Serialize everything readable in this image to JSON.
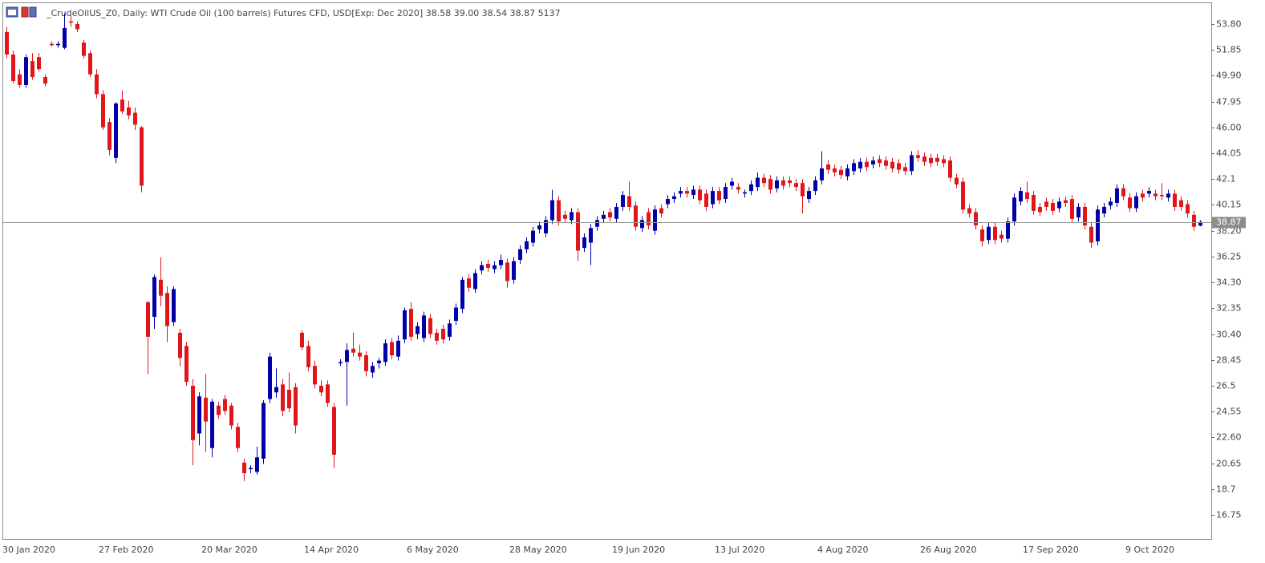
{
  "chart_data": {
    "type": "candlestick",
    "title": "_CrudeOilUS_Z0, Daily:  WTI Crude Oil (100 barrels) Futures CFD, USD[Exp: Dec 2020]  38.58 39.00 38.54 38.87  5137",
    "up_color": "#0000a8",
    "down_color": "#e0161a",
    "ylim": [
      14.94,
      55.43
    ],
    "yticks": [
      {
        "value": 53.8,
        "label": "53.80"
      },
      51.85,
      {
        "value": 49.9,
        "label": "49.90"
      },
      47.95,
      {
        "value": 46,
        "label": "46.00"
      },
      44.05,
      42.1,
      40.15,
      {
        "value": 38.2,
        "label": "38.20"
      },
      36.25,
      {
        "value": 34.3,
        "label": "34.30"
      },
      32.35,
      {
        "value": 30.4,
        "label": "30.40"
      },
      28.45,
      26.5,
      24.55,
      {
        "value": 22.6,
        "label": "22.60"
      },
      20.65,
      18.7,
      16.75
    ],
    "last_price": 38.87,
    "categories": [
      "30 Jan 2020",
      null,
      null,
      null,
      null,
      null,
      null,
      null,
      null,
      null,
      null,
      null,
      null,
      null,
      null,
      "27 Feb 2020",
      null,
      null,
      null,
      null,
      null,
      null,
      null,
      null,
      null,
      null,
      null,
      null,
      null,
      null,
      null,
      "20 Mar 2020",
      null,
      null,
      null,
      null,
      null,
      null,
      null,
      null,
      null,
      null,
      null,
      null,
      null,
      null,
      null,
      "14 Apr 2020",
      null,
      null,
      null,
      null,
      null,
      null,
      null,
      null,
      null,
      null,
      null,
      null,
      null,
      null,
      null,
      "6 May 2020",
      null,
      null,
      null,
      null,
      null,
      null,
      null,
      null,
      null,
      null,
      null,
      null,
      null,
      null,
      null,
      "28 May 2020",
      null,
      null,
      null,
      null,
      null,
      null,
      null,
      null,
      null,
      null,
      null,
      null,
      null,
      null,
      null,
      "19 Jun 2020",
      null,
      null,
      null,
      null,
      null,
      null,
      null,
      null,
      null,
      null,
      null,
      null,
      null,
      null,
      null,
      "13 Jul 2020",
      null,
      null,
      null,
      null,
      null,
      null,
      null,
      null,
      null,
      null,
      null,
      null,
      null,
      null,
      null,
      "4 Aug 2020",
      null,
      null,
      null,
      null,
      null,
      null,
      null,
      null,
      null,
      null,
      null,
      null,
      null,
      null,
      null,
      "26 Aug 2020",
      null,
      null,
      null,
      null,
      null,
      null,
      null,
      null,
      null,
      null,
      null,
      null,
      null,
      null,
      null,
      "17 Sep 2020",
      null,
      null,
      null,
      null,
      null,
      null,
      null,
      null,
      null,
      null,
      null,
      null,
      null,
      null,
      null,
      "9 Oct 2020",
      null,
      null,
      null,
      null,
      null,
      null,
      null,
      null,
      null,
      null,
      null
    ],
    "open": [
      53.2,
      51.5,
      50.0,
      49.2,
      51.0,
      51.3,
      49.8,
      52.3,
      52.2,
      52.0,
      54.0,
      53.8,
      52.4,
      51.6,
      50.0,
      48.5,
      46.4,
      43.7,
      48.1,
      47.5,
      47.1,
      46.0,
      32.8,
      31.7,
      34.5,
      33.5,
      31.3,
      30.5,
      29.5,
      26.5,
      22.9,
      25.6,
      21.8,
      25.0,
      25.5,
      25.0,
      23.4,
      20.7,
      20.2,
      20.0,
      21.0,
      25.5,
      26.0,
      26.6,
      26.2,
      26.4,
      30.5,
      29.5,
      28.0,
      26.5,
      26.6,
      24.9,
      28.2,
      28.3,
      29.3,
      29.0,
      28.8,
      27.5,
      28.2,
      28.3,
      29.8,
      28.7,
      30.0,
      32.3,
      30.4,
      30.1,
      31.6,
      30.5,
      30.8,
      30.2,
      31.4,
      32.3,
      34.6,
      33.8,
      35.2,
      35.7,
      35.3,
      35.6,
      35.8,
      34.5,
      36.0,
      36.8,
      37.3,
      38.3,
      38.0,
      39.0,
      40.5,
      39.4,
      39.0,
      39.6,
      36.9,
      37.3,
      38.5,
      39.1,
      39.6,
      39.1,
      40.0,
      40.8,
      40.1,
      38.4,
      39.6,
      38.2,
      39.9,
      40.2,
      40.6,
      41.0,
      41.2,
      40.9,
      41.3,
      41.0,
      40.2,
      41.2,
      40.6,
      41.6,
      41.5,
      41.0,
      41.2,
      41.5,
      42.2,
      42.1,
      41.4,
      42.0,
      42.0,
      41.8,
      41.8,
      40.6,
      41.2,
      42.0,
      43.2,
      42.9,
      42.8,
      42.3,
      42.7,
      42.9,
      43.4,
      43.2,
      43.6,
      43.5,
      43.4,
      43.3,
      43.0,
      42.7,
      43.9,
      43.8,
      43.7,
      43.7,
      43.6,
      43.5,
      42.2,
      41.9,
      39.9,
      39.6,
      38.3,
      37.5,
      38.5,
      37.9,
      37.6,
      38.9,
      40.4,
      41.1,
      40.9,
      40.0,
      40.4,
      40.3,
      39.9,
      40.5,
      40.6,
      39.2,
      40.0,
      38.5,
      37.4,
      39.5,
      40.1,
      40.3,
      41.4,
      40.7,
      39.9,
      41.0,
      41.0,
      41.0,
      40.9,
      40.7,
      41.0,
      40.5,
      40.2,
      39.4,
      38.58
    ],
    "high": [
      53.6,
      51.8,
      50.4,
      51.5,
      51.6,
      51.6,
      50.0,
      52.5,
      52.5,
      54.6,
      54.4,
      54.0,
      52.6,
      51.8,
      50.4,
      48.8,
      46.7,
      47.9,
      48.8,
      48.0,
      47.5,
      46.1,
      32.9,
      34.9,
      36.2,
      34.0,
      34.0,
      30.8,
      29.8,
      27.0,
      26.0,
      27.4,
      25.5,
      25.3,
      25.8,
      25.2,
      23.7,
      21.0,
      20.5,
      21.9,
      25.4,
      29.0,
      27.8,
      27.0,
      27.5,
      26.7,
      30.7,
      29.9,
      28.4,
      26.9,
      26.9,
      25.2,
      28.5,
      29.7,
      30.5,
      29.6,
      29.1,
      28.3,
      28.6,
      30.0,
      30.1,
      30.3,
      32.4,
      32.8,
      31.3,
      32.1,
      31.9,
      30.8,
      31.1,
      31.5,
      32.7,
      34.7,
      34.9,
      35.3,
      35.9,
      36.0,
      35.9,
      36.4,
      36.1,
      36.2,
      37.1,
      37.7,
      38.5,
      38.9,
      39.3,
      41.3,
      40.8,
      39.7,
      39.9,
      39.9,
      38.0,
      38.7,
      39.3,
      39.7,
      39.9,
      40.3,
      41.2,
      41.9,
      40.4,
      39.3,
      39.9,
      40.1,
      40.2,
      40.9,
      41.1,
      41.5,
      41.5,
      41.6,
      41.6,
      41.3,
      41.5,
      41.5,
      41.8,
      42.2,
      41.8,
      41.3,
      42.0,
      42.6,
      42.5,
      42.4,
      42.3,
      42.3,
      42.3,
      42.1,
      42.1,
      41.5,
      42.3,
      44.2,
      43.5,
      43.2,
      43.1,
      43.2,
      43.6,
      43.7,
      43.7,
      43.8,
      43.9,
      43.8,
      43.7,
      43.6,
      43.3,
      44.2,
      44.3,
      44.1,
      44.0,
      44.0,
      43.9,
      43.8,
      42.5,
      42.2,
      40.2,
      39.9,
      38.6,
      38.8,
      38.8,
      38.2,
      39.2,
      41.0,
      41.5,
      41.9,
      41.2,
      40.3,
      40.7,
      40.6,
      40.7,
      40.8,
      40.9,
      40.3,
      40.3,
      38.8,
      40.1,
      40.3,
      40.7,
      41.7,
      41.7,
      41.0,
      41.1,
      41.3,
      41.5,
      41.3,
      41.8,
      41.3,
      41.3,
      40.8,
      40.5,
      39.7,
      39.0
    ],
    "low": [
      51.2,
      49.3,
      49.0,
      49.0,
      49.6,
      50.2,
      49.1,
      52.1,
      52.0,
      51.9,
      53.6,
      53.2,
      51.2,
      49.8,
      48.2,
      45.8,
      43.9,
      43.3,
      47.0,
      46.6,
      45.8,
      41.1,
      27.4,
      30.8,
      32.5,
      29.8,
      31.0,
      28.0,
      26.5,
      20.5,
      22.0,
      21.5,
      21.1,
      24.0,
      24.3,
      23.2,
      21.5,
      19.3,
      19.9,
      19.8,
      20.6,
      25.2,
      25.6,
      24.2,
      24.5,
      22.9,
      29.2,
      27.6,
      26.3,
      25.7,
      24.9,
      20.3,
      28.0,
      25.0,
      28.7,
      28.4,
      27.2,
      27.1,
      27.8,
      28.0,
      28.5,
      28.4,
      29.7,
      29.9,
      30.0,
      29.8,
      30.1,
      29.6,
      29.7,
      29.9,
      31.1,
      32.0,
      33.6,
      33.5,
      34.9,
      35.1,
      35.0,
      35.3,
      33.9,
      34.2,
      35.7,
      36.5,
      37.0,
      38.0,
      37.7,
      38.7,
      38.6,
      38.8,
      38.7,
      35.9,
      36.6,
      35.6,
      38.2,
      38.8,
      38.9,
      38.8,
      39.7,
      39.7,
      38.2,
      38.1,
      38.3,
      37.9,
      39.2,
      39.9,
      40.3,
      40.7,
      40.7,
      40.6,
      40.2,
      39.7,
      39.9,
      40.2,
      40.3,
      41.3,
      41.0,
      40.7,
      40.9,
      41.2,
      41.5,
      41.0,
      41.1,
      41.3,
      41.5,
      41.2,
      39.5,
      40.3,
      40.9,
      41.7,
      42.5,
      42.3,
      42.1,
      42.0,
      42.4,
      42.6,
      42.7,
      42.9,
      43.0,
      42.8,
      42.6,
      42.5,
      42.4,
      42.4,
      43.4,
      43.1,
      43.0,
      43.1,
      43.0,
      41.9,
      41.4,
      39.5,
      39.2,
      38.3,
      37.0,
      37.2,
      37.2,
      37.3,
      37.3,
      38.6,
      40.1,
      40.3,
      39.4,
      39.3,
      39.7,
      39.4,
      39.6,
      40.0,
      38.8,
      38.9,
      38.3,
      36.9,
      37.1,
      39.2,
      39.8,
      40.0,
      40.5,
      39.6,
      39.6,
      40.4,
      40.7,
      40.5,
      40.5,
      40.4,
      39.7,
      39.7,
      39.2,
      38.2,
      38.54
    ],
    "close": [
      51.5,
      49.5,
      49.2,
      51.3,
      49.8,
      50.4,
      49.3,
      52.2,
      52.3,
      53.5,
      53.9,
      53.4,
      51.4,
      50.0,
      48.5,
      46.0,
      44.3,
      47.8,
      47.2,
      46.9,
      46.2,
      41.6,
      30.2,
      34.7,
      33.3,
      31.0,
      33.8,
      28.6,
      26.8,
      22.4,
      25.7,
      23.8,
      25.3,
      24.3,
      24.6,
      23.5,
      21.8,
      19.9,
      20.3,
      21.1,
      25.2,
      28.7,
      26.4,
      24.6,
      24.8,
      23.5,
      29.4,
      27.9,
      26.6,
      26.0,
      25.2,
      21.3,
      28.3,
      29.2,
      29.0,
      28.7,
      27.6,
      28.0,
      28.4,
      29.7,
      28.8,
      29.9,
      32.2,
      30.2,
      31.0,
      31.8,
      30.4,
      29.9,
      30.0,
      31.2,
      32.4,
      34.5,
      33.9,
      35.0,
      35.6,
      35.4,
      35.6,
      36.0,
      34.4,
      35.9,
      36.8,
      37.4,
      38.2,
      38.6,
      39.0,
      40.5,
      38.9,
      39.1,
      39.6,
      36.7,
      37.7,
      38.4,
      39.0,
      39.4,
      39.2,
      40.0,
      40.9,
      40.0,
      38.5,
      39.0,
      38.6,
      39.8,
      39.5,
      40.6,
      40.8,
      41.2,
      41.0,
      41.3,
      40.5,
      40.0,
      41.2,
      40.5,
      41.5,
      41.9,
      41.3,
      41.1,
      41.7,
      42.2,
      41.8,
      41.3,
      42.0,
      41.6,
      41.8,
      41.5,
      40.8,
      41.2,
      42.0,
      42.9,
      42.8,
      42.6,
      42.4,
      42.9,
      43.3,
      43.4,
      43.0,
      43.5,
      43.3,
      43.1,
      42.9,
      42.8,
      42.7,
      43.9,
      43.7,
      43.4,
      43.3,
      43.4,
      43.3,
      42.2,
      41.7,
      39.8,
      39.5,
      38.6,
      37.4,
      38.5,
      37.5,
      37.6,
      38.9,
      40.7,
      41.2,
      40.6,
      39.7,
      39.6,
      40.0,
      39.7,
      40.4,
      40.3,
      39.1,
      40.0,
      38.6,
      37.3,
      39.8,
      40.0,
      40.4,
      41.4,
      40.8,
      39.9,
      40.8,
      40.7,
      41.2,
      40.8,
      40.8,
      41.0,
      40.0,
      40.0,
      39.5,
      38.5,
      38.87
    ]
  }
}
